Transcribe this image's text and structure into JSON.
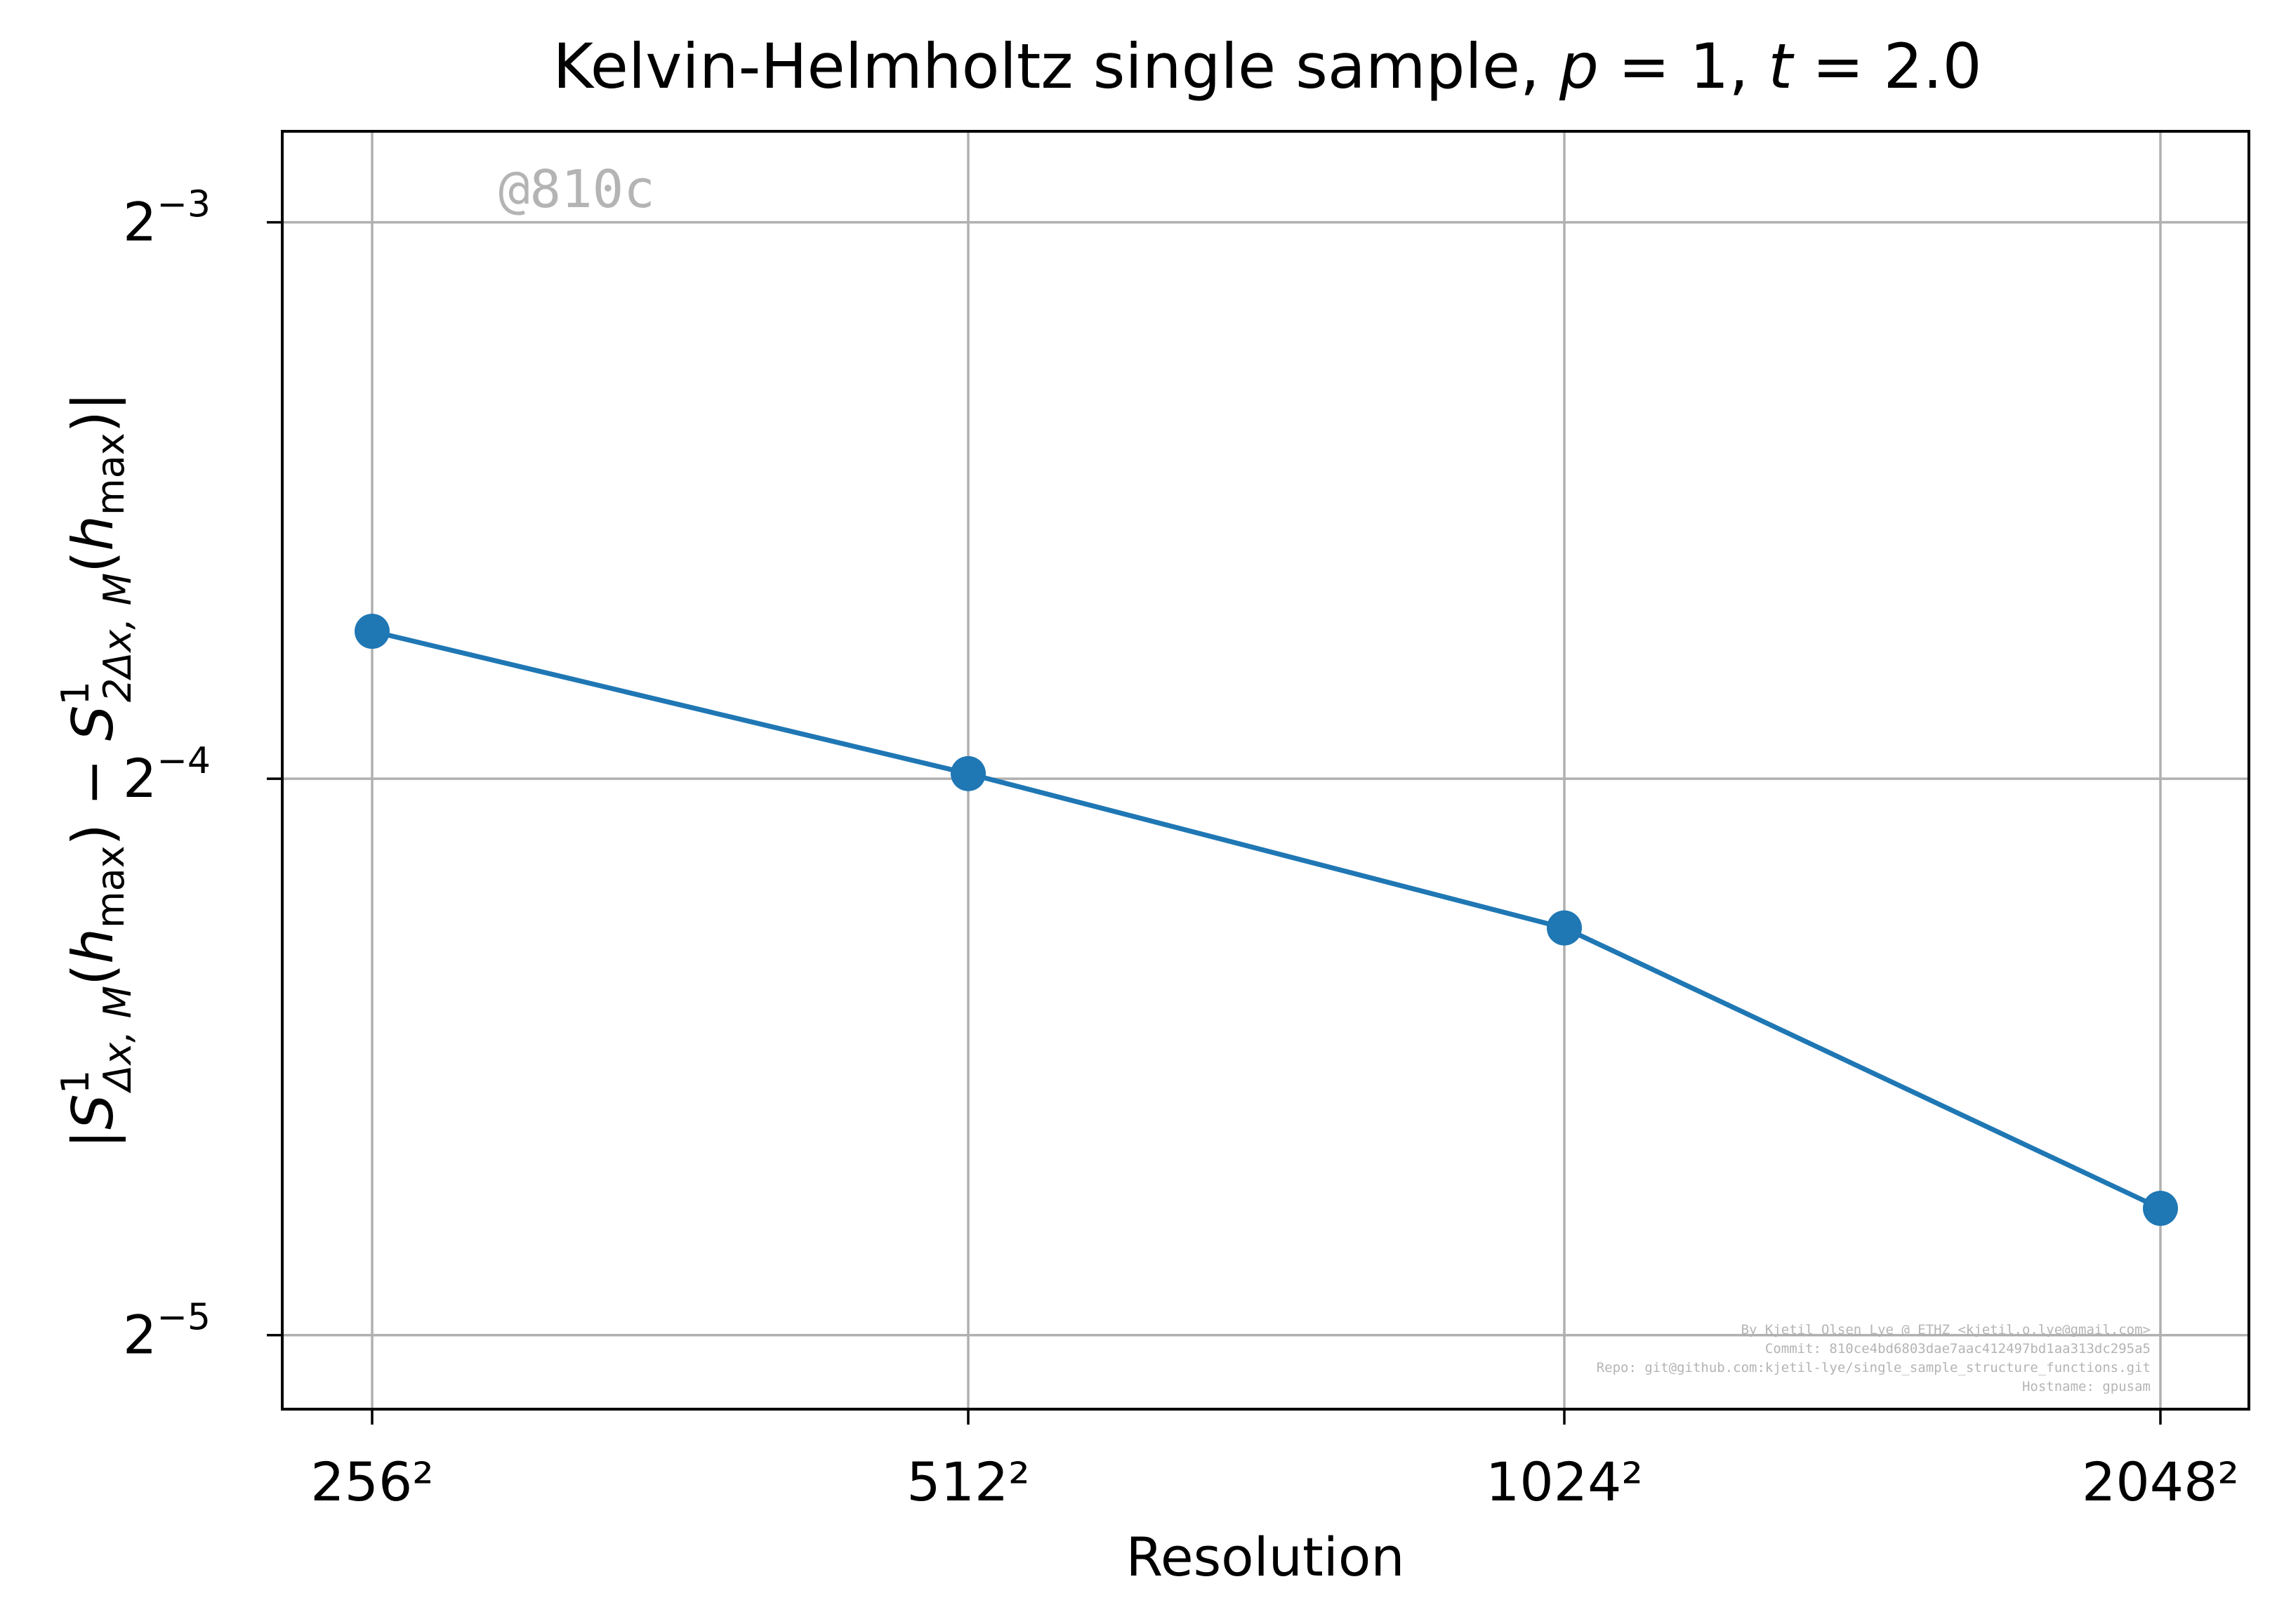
{
  "chart_data": {
    "type": "line",
    "title": "Kelvin-Helmholtz single sample, p = 1, t = 2.0",
    "xlabel": "Resolution",
    "ylabel": "|S^1_{Δx,M}(h_max) − S^1_{2Δx,M}(h_max)|",
    "x_scale": "log2",
    "y_scale": "log2",
    "categories": [
      "256²",
      "512²",
      "1024²",
      "2048²"
    ],
    "x": [
      256,
      512,
      1024,
      2048
    ],
    "series": [
      {
        "values": [
          0.0751,
          0.0629,
          0.0519,
          0.0366
        ],
        "color": "#1f77b4"
      }
    ],
    "yticks": [
      {
        "value": 0.03125,
        "label": "2",
        "exp": "−5"
      },
      {
        "value": 0.0625,
        "label": "2",
        "exp": "−4"
      },
      {
        "value": 0.125,
        "label": "2",
        "exp": "−3"
      }
    ],
    "ylim": [
      0.0285,
      0.14
    ],
    "grid": true,
    "legend": "none"
  },
  "watermark": "@810c",
  "footer_lines": [
    "By Kjetil Olsen Lye @ ETHZ <kjetil.o.lye@gmail.com>",
    "Commit: 810ce4bd6803dae7aac412497bd1aa313dc295a5",
    "Repo: git@github.com:kjetil-lye/single_sample_structure_functions.git",
    "Hostname: gpusam"
  ]
}
